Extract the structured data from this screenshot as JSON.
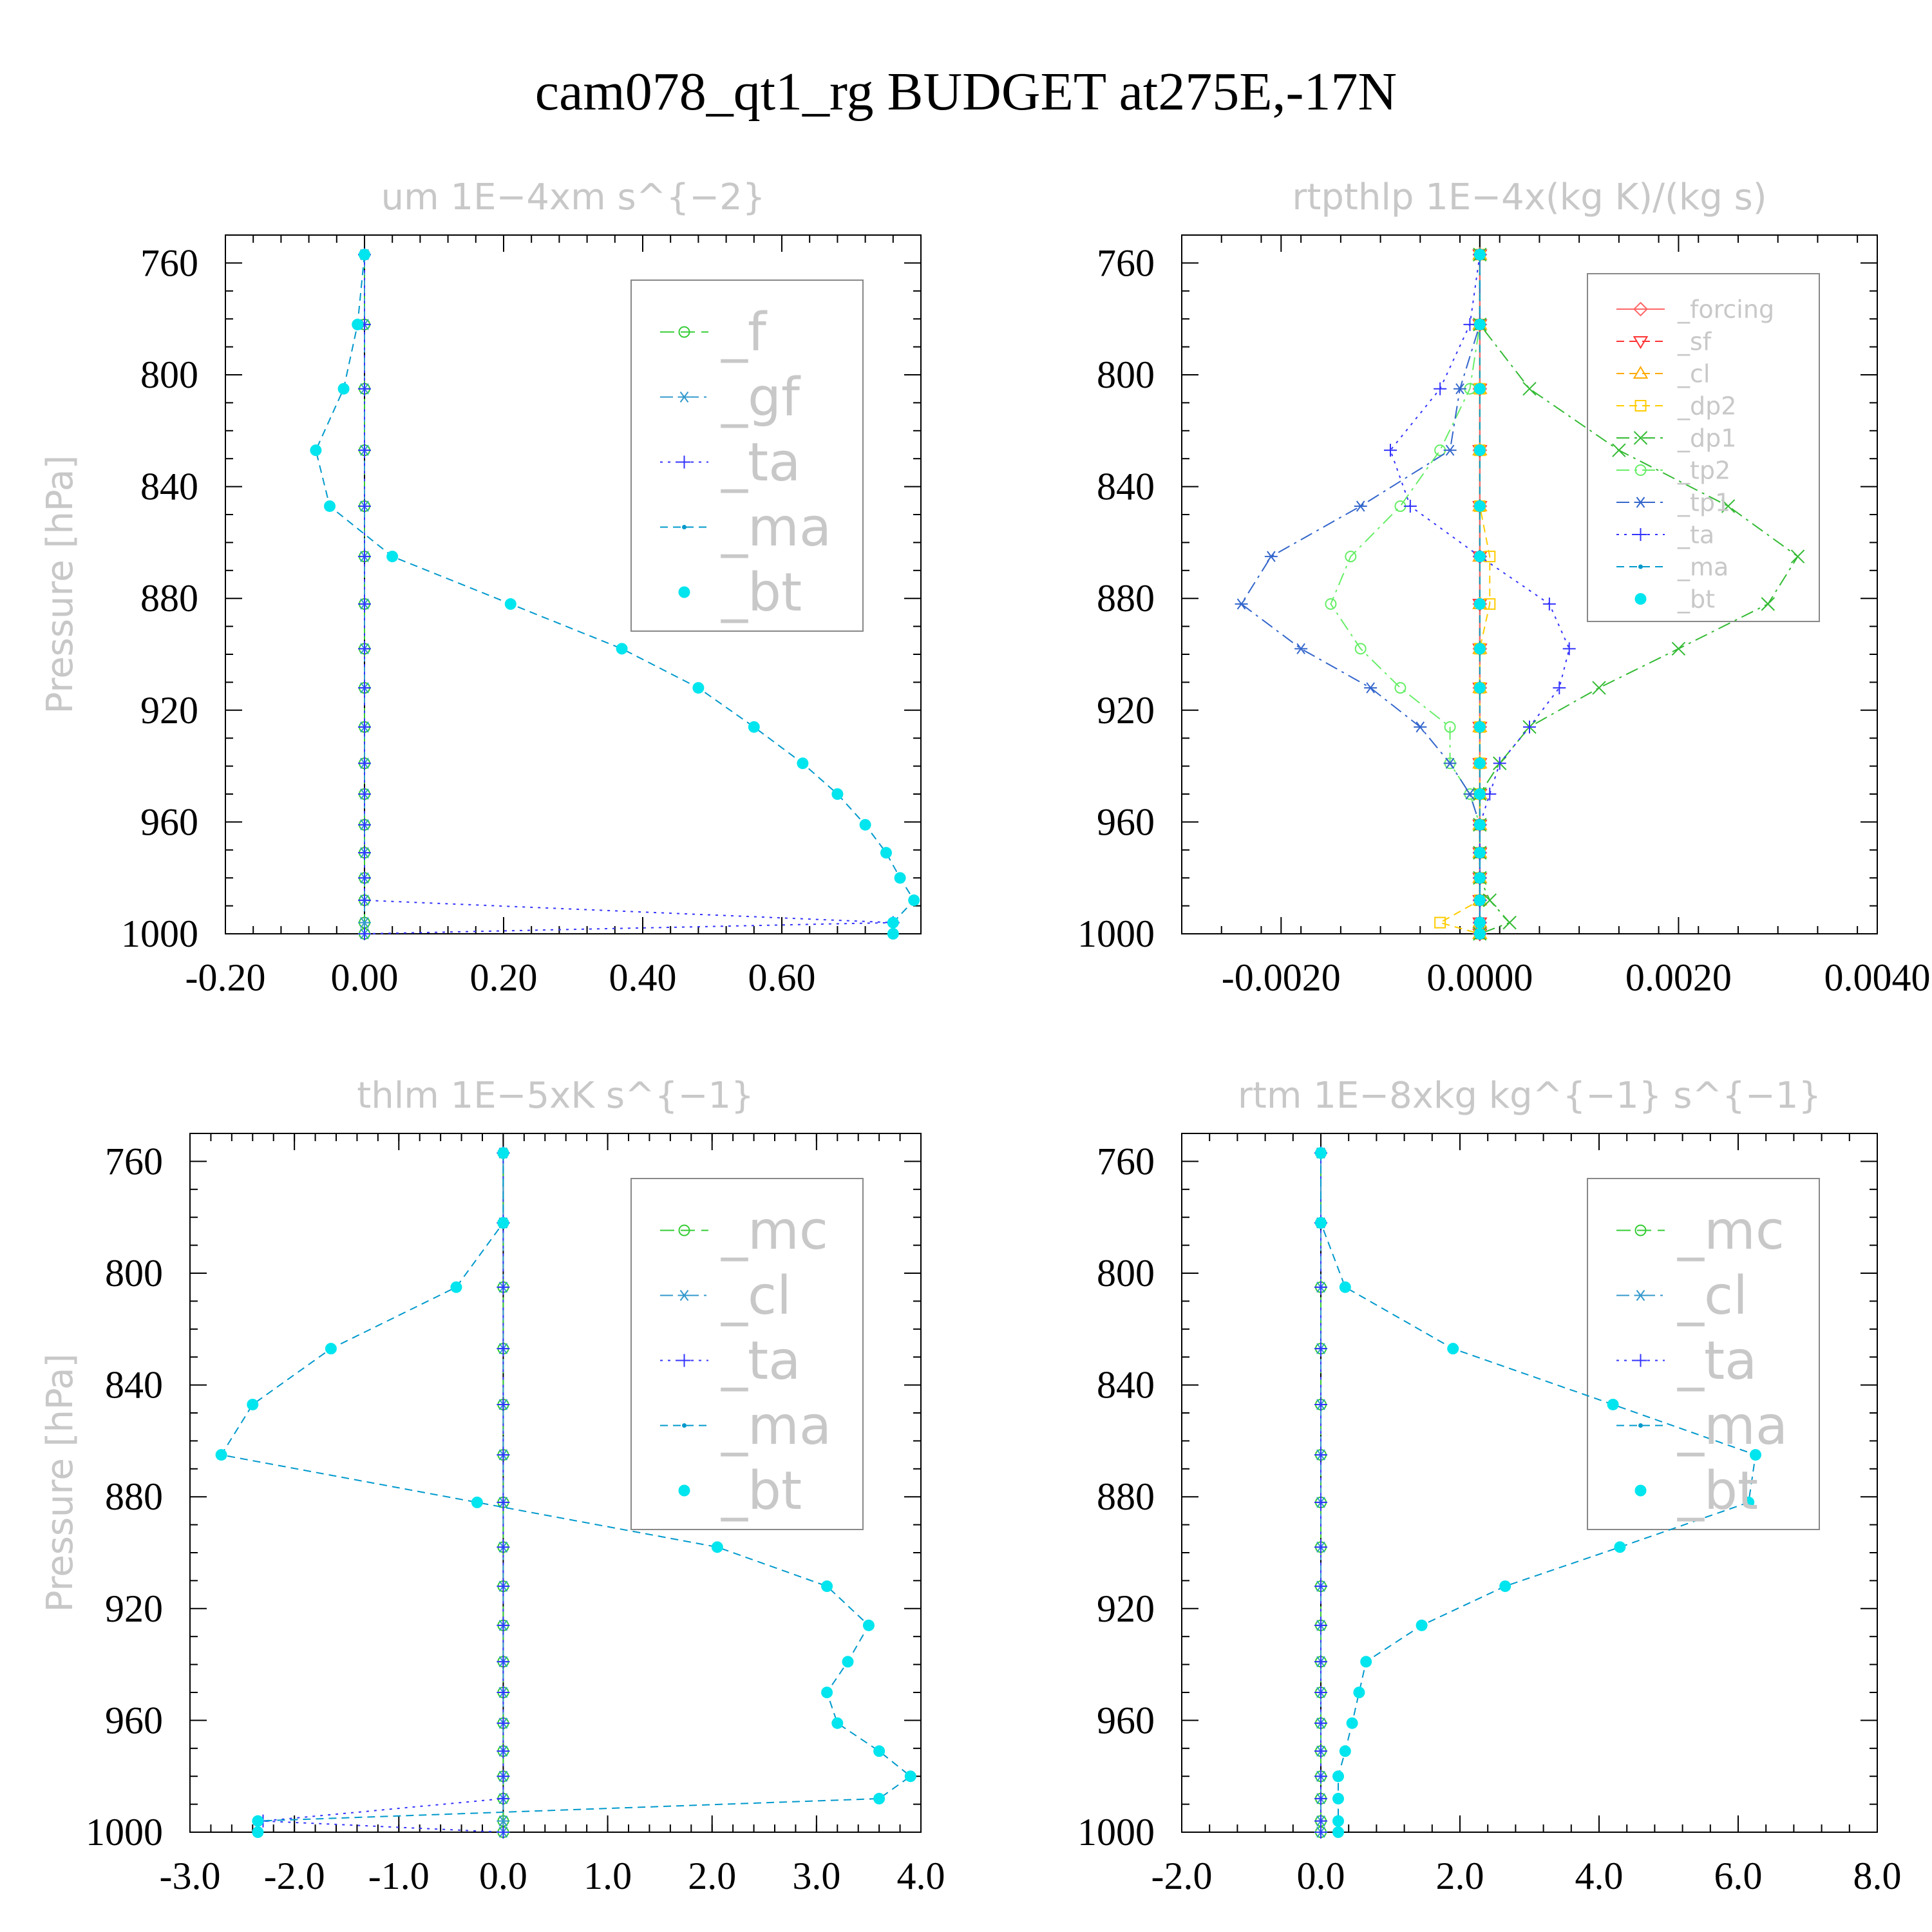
{
  "title": "cam078_qt1_rg  BUDGET at275E,-17N",
  "chart_data": [
    {
      "type": "line",
      "title": "um   1E−4xm s^{−2}",
      "ylabel": "Pressure [hPa]",
      "xlim": [
        -0.2,
        0.8
      ],
      "ylim": [
        1000,
        750
      ],
      "xticks": [
        "-0.20",
        "0.00",
        "0.20",
        "0.40",
        "0.60"
      ],
      "xtick_values": [
        -0.2,
        0.0,
        0.2,
        0.4,
        0.6
      ],
      "yticks": [
        "760",
        "800",
        "840",
        "880",
        "920",
        "960",
        "1000"
      ],
      "ytick_values": [
        760,
        800,
        840,
        880,
        920,
        960,
        1000
      ],
      "legend": {
        "position": "top-right",
        "size": "large"
      },
      "y": [
        757,
        782,
        805,
        827,
        847,
        865,
        882,
        898,
        912,
        926,
        939,
        950,
        961,
        971,
        980,
        988,
        996,
        1000
      ],
      "series": [
        {
          "name": "_f",
          "color": "#33cc33",
          "dash": "long",
          "marker": "circle",
          "values": [
            0,
            0,
            0,
            0,
            0,
            0,
            0,
            0,
            0,
            0,
            0,
            0,
            0,
            0,
            0,
            0,
            0,
            0
          ]
        },
        {
          "name": "_gf",
          "color": "#3399cc",
          "dash": "dashdot",
          "marker": "asterisk",
          "values": [
            0,
            0,
            0,
            0,
            0,
            0,
            0,
            0,
            0,
            0,
            0,
            0,
            0,
            0,
            0,
            0,
            0,
            0
          ]
        },
        {
          "name": "_ta",
          "color": "#3333ff",
          "dash": "dot",
          "marker": "plus",
          "values": [
            0,
            0,
            0,
            0,
            0,
            0,
            0,
            0,
            0,
            0,
            0,
            0,
            0,
            0,
            0,
            0,
            0.76,
            0
          ]
        },
        {
          "name": "_ma",
          "color": "#0099cc",
          "dash": "dash",
          "marker": "dot",
          "values": [
            0,
            -0.01,
            -0.03,
            -0.07,
            -0.05,
            0.04,
            0.21,
            0.37,
            0.48,
            0.56,
            0.63,
            0.68,
            0.72,
            0.75,
            0.77,
            0.79,
            0.76,
            0.76
          ]
        },
        {
          "name": "_bt",
          "color": "#00e5ee",
          "dash": "none",
          "marker": "filled-circle",
          "values": [
            0,
            -0.01,
            -0.03,
            -0.07,
            -0.05,
            0.04,
            0.21,
            0.37,
            0.48,
            0.56,
            0.63,
            0.68,
            0.72,
            0.75,
            0.77,
            0.79,
            0.76,
            0.76
          ]
        }
      ]
    },
    {
      "type": "line",
      "title": "rtpthlp   1E−4x(kg K)/(kg s)",
      "ylabel": "Pressure [hPa]",
      "xlim": [
        -0.003,
        0.004
      ],
      "ylim": [
        1000,
        750
      ],
      "xticks": [
        "-0.0020",
        "0.0000",
        "0.0020",
        "0.0040"
      ],
      "xtick_values": [
        -0.002,
        0.0,
        0.002,
        0.004
      ],
      "yticks": [
        "760",
        "800",
        "840",
        "880",
        "920",
        "960",
        "1000"
      ],
      "ytick_values": [
        760,
        800,
        840,
        880,
        920,
        960,
        1000
      ],
      "legend": {
        "position": "top-right",
        "size": "small"
      },
      "y": [
        757,
        782,
        805,
        827,
        847,
        865,
        882,
        898,
        912,
        926,
        939,
        950,
        961,
        971,
        980,
        988,
        996,
        1000
      ],
      "series": [
        {
          "name": "_forcing",
          "color": "#ff6666",
          "dash": "solid",
          "marker": "diamond",
          "values": [
            0,
            0,
            0,
            0,
            0,
            0,
            0,
            0,
            0,
            0,
            0,
            0,
            0,
            0,
            0,
            0,
            0,
            0
          ]
        },
        {
          "name": "_sf",
          "color": "#ff3333",
          "dash": "dash",
          "marker": "triangle-down",
          "values": [
            0,
            0,
            0,
            0,
            0,
            0,
            0,
            0,
            0,
            0,
            0,
            0,
            0,
            0,
            0,
            0,
            0,
            0
          ]
        },
        {
          "name": "_cl",
          "color": "#ffaa00",
          "dash": "dash",
          "marker": "triangle-up",
          "values": [
            0,
            0,
            0,
            0,
            0,
            0,
            0,
            0,
            0,
            0,
            0,
            0,
            0,
            0,
            0,
            0,
            0,
            0
          ]
        },
        {
          "name": "_dp2",
          "color": "#ffcc00",
          "dash": "dash",
          "marker": "square",
          "values": [
            0,
            0,
            0,
            0,
            0,
            0.0001,
            0.0001,
            0,
            0,
            0,
            0,
            0,
            0,
            0,
            0,
            0,
            -0.0004,
            0
          ]
        },
        {
          "name": "_dp1",
          "color": "#33bb33",
          "dash": "dashdot",
          "marker": "x",
          "values": [
            0,
            0,
            0.0005,
            0.0014,
            0.0025,
            0.0032,
            0.0029,
            0.002,
            0.0012,
            0.0005,
            0.0002,
            0,
            0,
            0,
            0,
            0.0001,
            0.0003,
            0
          ]
        },
        {
          "name": "_tp2",
          "color": "#66ee66",
          "dash": "dashdot",
          "marker": "circle",
          "values": [
            0,
            0,
            -0.0001,
            -0.0004,
            -0.0008,
            -0.0013,
            -0.0015,
            -0.0012,
            -0.0008,
            -0.0003,
            -0.0003,
            -0.0001,
            0,
            0,
            0,
            0,
            0,
            0
          ]
        },
        {
          "name": "_tp1",
          "color": "#3366cc",
          "dash": "dashdot",
          "marker": "asterisk",
          "values": [
            0,
            0,
            -0.0002,
            -0.0003,
            -0.0012,
            -0.0021,
            -0.0024,
            -0.0018,
            -0.0011,
            -0.0006,
            -0.0003,
            -0.0001,
            0,
            0,
            0,
            0,
            0,
            0
          ]
        },
        {
          "name": "_ta",
          "color": "#3333ff",
          "dash": "dot",
          "marker": "plus",
          "values": [
            0,
            -0.0001,
            -0.0004,
            -0.0009,
            -0.0007,
            0,
            0.0007,
            0.0009,
            0.0008,
            0.0005,
            0.0002,
            0.0001,
            0,
            0,
            0,
            0,
            0,
            0
          ]
        },
        {
          "name": "_ma",
          "color": "#0099cc",
          "dash": "dash",
          "marker": "dot",
          "values": [
            0,
            0,
            0,
            0,
            0,
            0,
            0,
            0,
            0,
            0,
            0,
            0,
            0,
            0,
            0,
            0,
            0,
            0
          ]
        },
        {
          "name": "_bt",
          "color": "#00e5ee",
          "dash": "none",
          "marker": "filled-circle",
          "values": [
            0,
            0,
            0,
            0,
            0,
            0,
            0,
            0,
            0,
            0,
            0,
            0,
            0,
            0,
            0,
            0,
            0,
            0
          ]
        }
      ]
    },
    {
      "type": "line",
      "title": "thlm   1E−5xK s^{−1}",
      "ylabel": "Pressure [hPa]",
      "xlim": [
        -3.0,
        4.0
      ],
      "ylim": [
        1000,
        750
      ],
      "xticks": [
        "-3.0",
        "-2.0",
        "-1.0",
        "0.0",
        "1.0",
        "2.0",
        "3.0",
        "4.0"
      ],
      "xtick_values": [
        -3.0,
        -2.0,
        -1.0,
        0.0,
        1.0,
        2.0,
        3.0,
        4.0
      ],
      "yticks": [
        "760",
        "800",
        "840",
        "880",
        "920",
        "960",
        "1000"
      ],
      "ytick_values": [
        760,
        800,
        840,
        880,
        920,
        960,
        1000
      ],
      "legend": {
        "position": "top-right",
        "size": "large"
      },
      "y": [
        757,
        782,
        805,
        827,
        847,
        865,
        882,
        898,
        912,
        926,
        939,
        950,
        961,
        971,
        980,
        988,
        996,
        1000
      ],
      "series": [
        {
          "name": "_mc",
          "color": "#33cc33",
          "dash": "long",
          "marker": "circle",
          "values": [
            0,
            0,
            0,
            0,
            0,
            0,
            0,
            0,
            0,
            0,
            0,
            0,
            0,
            0,
            0,
            0,
            0,
            0
          ]
        },
        {
          "name": "_cl",
          "color": "#3399cc",
          "dash": "dashdot",
          "marker": "asterisk",
          "values": [
            0,
            0,
            0,
            0,
            0,
            0,
            0,
            0,
            0,
            0,
            0,
            0,
            0,
            0,
            0,
            0,
            0,
            0
          ]
        },
        {
          "name": "_ta",
          "color": "#3333ff",
          "dash": "dot",
          "marker": "plus",
          "values": [
            0,
            0,
            0,
            0,
            0,
            0,
            0,
            0,
            0,
            0,
            0,
            0,
            0,
            0,
            0,
            0,
            -2.3,
            0
          ]
        },
        {
          "name": "_ma",
          "color": "#0099cc",
          "dash": "dash",
          "marker": "dot",
          "values": [
            0,
            0,
            -0.45,
            -1.65,
            -2.4,
            -2.7,
            -0.25,
            2.05,
            3.1,
            3.5,
            3.3,
            3.1,
            3.2,
            3.6,
            3.9,
            3.6,
            -2.35,
            -2.35
          ]
        },
        {
          "name": "_bt",
          "color": "#00e5ee",
          "dash": "none",
          "marker": "filled-circle",
          "values": [
            0,
            0,
            -0.45,
            -1.65,
            -2.4,
            -2.7,
            -0.25,
            2.05,
            3.1,
            3.5,
            3.3,
            3.1,
            3.2,
            3.6,
            3.9,
            3.6,
            -2.35,
            -2.35
          ]
        }
      ]
    },
    {
      "type": "line",
      "title": "rtm   1E−8xkg kg^{−1} s^{−1}",
      "ylabel": "Pressure [hPa]",
      "xlim": [
        -2.0,
        8.0
      ],
      "ylim": [
        1000,
        750
      ],
      "xticks": [
        "-2.0",
        "0.0",
        "2.0",
        "4.0",
        "6.0",
        "8.0"
      ],
      "xtick_values": [
        -2.0,
        0.0,
        2.0,
        4.0,
        6.0,
        8.0
      ],
      "yticks": [
        "760",
        "800",
        "840",
        "880",
        "920",
        "960",
        "1000"
      ],
      "ytick_values": [
        760,
        800,
        840,
        880,
        920,
        960,
        1000
      ],
      "legend": {
        "position": "top-right",
        "size": "large"
      },
      "y": [
        757,
        782,
        805,
        827,
        847,
        865,
        882,
        898,
        912,
        926,
        939,
        950,
        961,
        971,
        980,
        988,
        996,
        1000
      ],
      "series": [
        {
          "name": "_mc",
          "color": "#33cc33",
          "dash": "long",
          "marker": "circle",
          "values": [
            0,
            0,
            0,
            0,
            0,
            0,
            0,
            0,
            0,
            0,
            0,
            0,
            0,
            0,
            0,
            0,
            0,
            0
          ]
        },
        {
          "name": "_cl",
          "color": "#3399cc",
          "dash": "dashdot",
          "marker": "asterisk",
          "values": [
            0,
            0,
            0,
            0,
            0,
            0,
            0,
            0,
            0,
            0,
            0,
            0,
            0,
            0,
            0,
            0,
            0,
            0
          ]
        },
        {
          "name": "_ta",
          "color": "#3333ff",
          "dash": "dot",
          "marker": "plus",
          "values": [
            0,
            0,
            0,
            0,
            0,
            0,
            0,
            0,
            0,
            0,
            0,
            0,
            0,
            0,
            0,
            0,
            0,
            0
          ]
        },
        {
          "name": "_ma",
          "color": "#0099cc",
          "dash": "dash",
          "marker": "dot",
          "values": [
            0,
            0,
            0.35,
            1.9,
            4.2,
            6.25,
            6.15,
            4.3,
            2.65,
            1.45,
            0.65,
            0.55,
            0.45,
            0.35,
            0.25,
            0.25,
            0.25,
            0.25
          ]
        },
        {
          "name": "_bt",
          "color": "#00e5ee",
          "dash": "none",
          "marker": "filled-circle",
          "values": [
            0,
            0,
            0.35,
            1.9,
            4.2,
            6.25,
            6.15,
            4.3,
            2.65,
            1.45,
            0.65,
            0.55,
            0.45,
            0.35,
            0.25,
            0.25,
            0.25,
            0.25
          ]
        }
      ]
    }
  ]
}
